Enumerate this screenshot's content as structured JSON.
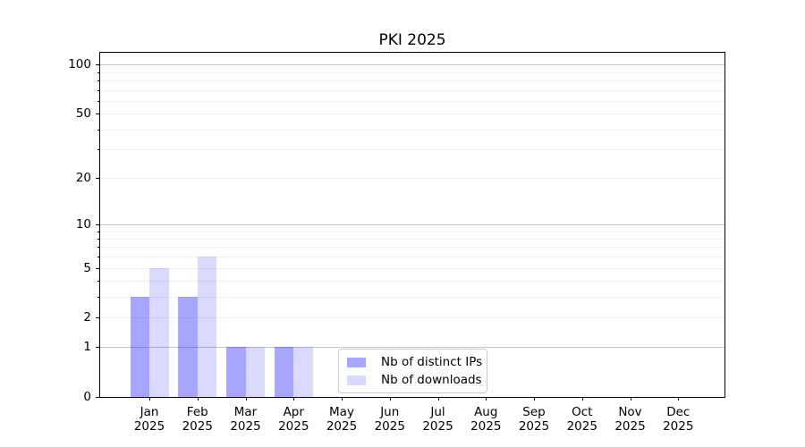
{
  "chart_data": {
    "type": "bar",
    "title": "PKI 2025",
    "categories": [
      "Jan",
      "Feb",
      "Mar",
      "Apr",
      "May",
      "Jun",
      "Jul",
      "Aug",
      "Sep",
      "Oct",
      "Nov",
      "Dec"
    ],
    "category_year_label": "2025",
    "series": [
      {
        "key": "distinct-ips",
        "name": "Nb of distinct IPs",
        "color": "rgba(0,0,255,0.35)",
        "values": [
          3,
          3,
          1,
          1,
          0,
          0,
          0,
          0,
          0,
          0,
          0,
          0
        ]
      },
      {
        "key": "downloads",
        "name": "Nb of downloads",
        "color": "rgba(0,0,255,0.15)",
        "values": [
          5,
          6,
          1,
          1,
          0,
          0,
          0,
          0,
          0,
          0,
          0,
          0
        ]
      }
    ],
    "xlabel": "",
    "ylabel": "",
    "yscale": "log1p",
    "ylim": [
      0,
      118
    ],
    "ytick_labels": [
      0,
      1,
      2,
      5,
      10,
      20,
      50,
      100
    ],
    "grid_decade_lines": [
      1,
      10,
      100
    ],
    "grid_minor_lines": [
      2,
      3,
      4,
      5,
      6,
      7,
      8,
      9,
      20,
      30,
      40,
      50,
      60,
      70,
      80,
      90
    ],
    "grid": true,
    "legend_position": "lower center",
    "colors": {
      "decade_grid": "#c6c6c6",
      "minor_grid": "#efefef",
      "axis": "#000000",
      "legend_border": "#cccccc",
      "background": "#ffffff"
    }
  }
}
